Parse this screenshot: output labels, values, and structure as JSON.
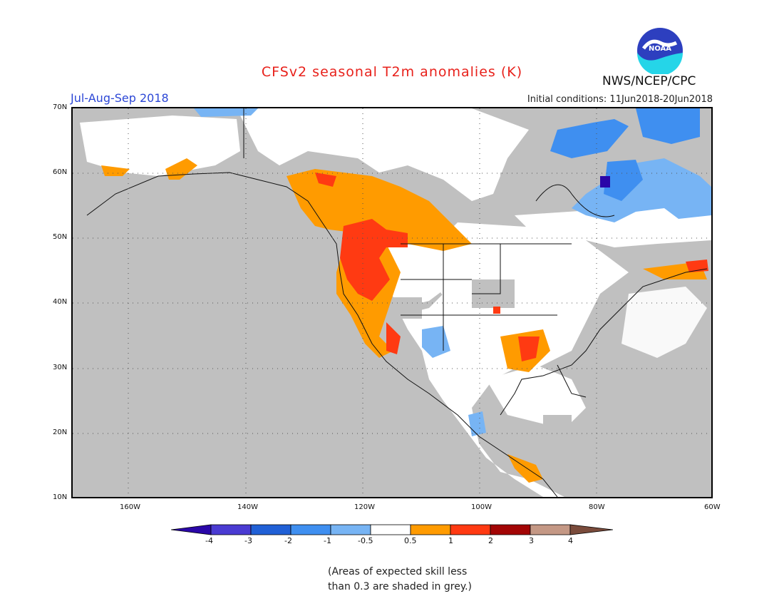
{
  "header": {
    "title": "CFSv2 seasonal T2m anomalies (K)",
    "season": "Jul-Aug-Sep 2018",
    "initial_conditions": "Initial conditions: 11Jun2018-20Jun2018",
    "agency": "NWS/NCEP/CPC"
  },
  "map": {
    "lat_labels": [
      "70N",
      "60N",
      "50N",
      "40N",
      "30N",
      "20N",
      "10N"
    ],
    "lon_labels": [
      "160W",
      "140W",
      "120W",
      "100W",
      "80W",
      "60W"
    ],
    "background_skill_color": "#c0c0c0"
  },
  "legend": {
    "labels": [
      "-4",
      "-3",
      "-2",
      "-1",
      "-0.5",
      "0.5",
      "1",
      "2",
      "3",
      "4"
    ],
    "colors": [
      "#2a07a8",
      "#4a3bd2",
      "#2060d6",
      "#3f8ff0",
      "#77b4f4",
      "#ffffff",
      "#ff9b00",
      "#ff3a12",
      "#a30505",
      "#c49885",
      "#7a4b3b"
    ]
  },
  "note": {
    "line1": "(Areas of expected skill less",
    "line2": "than 0.3 are shaded in grey.)"
  }
}
